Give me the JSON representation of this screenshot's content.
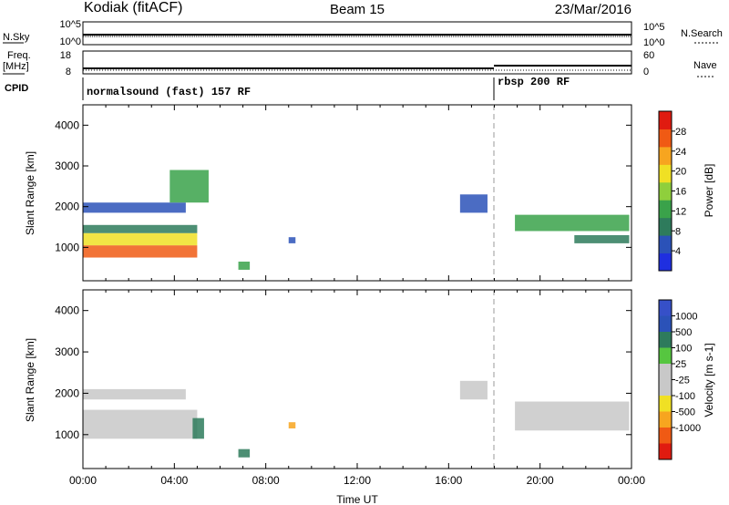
{
  "header": {
    "title_left": "Kodiak (fitACF)",
    "title_center": "Beam 15",
    "title_right": "23/Mar/2016"
  },
  "strip1": {
    "left_label": "N.Sky",
    "right_label": "N.Search",
    "tick_top": "10^5",
    "tick_bottom": "10^0",
    "tick_top_right": "10^5",
    "tick_bottom_right": "10^0"
  },
  "strip2": {
    "left_label_1": "Freq.",
    "left_label_2": "[MHz]",
    "right_label": "Nave",
    "tick_left_top": "18",
    "tick_left_bottom": "8",
    "tick_right_top": "60",
    "tick_right_bottom": "0"
  },
  "cpid": {
    "label": "CPID",
    "segments": [
      {
        "text": "normalsound (fast) 157 RF",
        "start_hour": 0
      },
      {
        "text": "rbsp 200 RF",
        "start_hour": 18
      }
    ]
  },
  "colors": {
    "power": [
      "#1f2fe0",
      "#2b52b8",
      "#2e7b5c",
      "#3aa24a",
      "#8fcf3c",
      "#f0e024",
      "#f7a51f",
      "#f05a14",
      "#e01b10"
    ],
    "velocity": [
      "#e01b10",
      "#f05a14",
      "#f7a51f",
      "#f0e024",
      "#c8c8c8",
      "#c8c8c8",
      "#56c640",
      "#2e7b5c",
      "#2b52b8",
      "#3650c8"
    ]
  },
  "chart_data": [
    {
      "type": "heatmap",
      "panel": "power",
      "xlabel": "",
      "ylabel": "Slant Range [km]",
      "xlim": [
        0,
        24
      ],
      "ylim": [
        180,
        4500
      ],
      "yticks": [
        1000,
        2000,
        3000,
        4000
      ],
      "colorbar_label": "Power [dB]",
      "colorbar_ticks": [
        "4",
        "8",
        "12",
        "16",
        "20",
        "24",
        "28"
      ],
      "colorbar_range": [
        0,
        32
      ],
      "echo_regions": [
        {
          "t_start": 0.0,
          "t_end": 5.0,
          "r_low": 750,
          "r_high": 1050,
          "value": 28
        },
        {
          "t_start": 0.0,
          "t_end": 5.0,
          "r_low": 1050,
          "r_high": 1350,
          "value": 18
        },
        {
          "t_start": 0.0,
          "t_end": 5.0,
          "r_low": 1350,
          "r_high": 1550,
          "value": 10
        },
        {
          "t_start": 0.0,
          "t_end": 4.5,
          "r_low": 1850,
          "r_high": 2100,
          "value": 6
        },
        {
          "t_start": 3.8,
          "t_end": 5.5,
          "r_low": 2100,
          "r_high": 2900,
          "value": 12
        },
        {
          "t_start": 6.8,
          "t_end": 7.3,
          "r_low": 450,
          "r_high": 650,
          "value": 14
        },
        {
          "t_start": 9.0,
          "t_end": 9.3,
          "r_low": 1100,
          "r_high": 1250,
          "value": 6
        },
        {
          "t_start": 16.5,
          "t_end": 17.7,
          "r_low": 1850,
          "r_high": 2300,
          "value": 5
        },
        {
          "t_start": 18.9,
          "t_end": 23.9,
          "r_low": 1400,
          "r_high": 1800,
          "value": 14
        },
        {
          "t_start": 21.5,
          "t_end": 23.9,
          "r_low": 1100,
          "r_high": 1300,
          "value": 8
        }
      ]
    },
    {
      "type": "heatmap",
      "panel": "velocity",
      "xlabel": "Time UT",
      "ylabel": "Slant Range [km]",
      "xlim": [
        0,
        24
      ],
      "ylim": [
        180,
        4500
      ],
      "yticks": [
        1000,
        2000,
        3000,
        4000
      ],
      "xticks": [
        "00:00",
        "04:00",
        "08:00",
        "12:00",
        "16:00",
        "20:00",
        "00:00"
      ],
      "colorbar_label": "Velocity [m s-1]",
      "colorbar_ticks": [
        "-1000",
        "-500",
        "-100",
        "-25",
        "25",
        "100",
        "500",
        "1000"
      ],
      "echo_regions": [
        {
          "t_start": 0.0,
          "t_end": 5.0,
          "r_low": 900,
          "r_high": 1600,
          "value": 0
        },
        {
          "t_start": 0.0,
          "t_end": 4.5,
          "r_low": 1850,
          "r_high": 2100,
          "value": 0
        },
        {
          "t_start": 4.8,
          "t_end": 5.3,
          "r_low": 900,
          "r_high": 1400,
          "value": 300
        },
        {
          "t_start": 6.8,
          "t_end": 7.3,
          "r_low": 450,
          "r_high": 650,
          "value": 200
        },
        {
          "t_start": 9.0,
          "t_end": 9.3,
          "r_low": 1150,
          "r_high": 1300,
          "value": -300
        },
        {
          "t_start": 16.5,
          "t_end": 17.7,
          "r_low": 1850,
          "r_high": 2300,
          "value": 0
        },
        {
          "t_start": 18.9,
          "t_end": 23.9,
          "r_low": 1100,
          "r_high": 1800,
          "value": 0
        }
      ]
    }
  ]
}
